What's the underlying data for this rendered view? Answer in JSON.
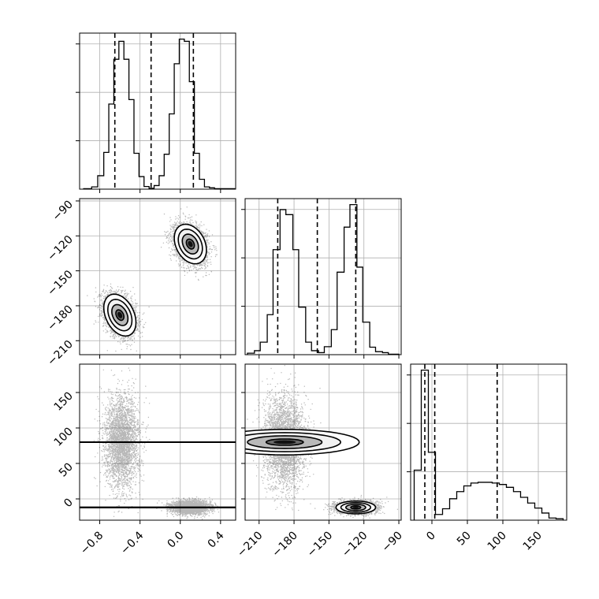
{
  "chart_data": {
    "type": "corner",
    "parameters": [
      {
        "range": [
          -1.0,
          0.55
        ],
        "ticks": [
          -0.8,
          -0.4,
          0.0,
          0.4
        ],
        "tick_labels": [
          "−0.8",
          "−0.4",
          "0.0",
          "0.4"
        ],
        "quantiles": [
          -0.65,
          -0.29,
          0.13
        ]
      },
      {
        "range": [
          -222,
          -88
        ],
        "ticks": [
          -210,
          -180,
          -150,
          -120,
          -90
        ],
        "tick_labels": [
          "−210",
          "−180",
          "−150",
          "−120",
          "−90"
        ],
        "quantiles": [
          -194,
          -160,
          -127
        ]
      },
      {
        "range": [
          -30,
          190
        ],
        "ticks": [
          0,
          50,
          100,
          150
        ],
        "tick_labels": [
          "0",
          "50",
          "100",
          "150"
        ],
        "quantiles": [
          -10,
          4,
          92
        ]
      }
    ],
    "histograms": [
      {
        "bins": [
          -0.96,
          -0.88,
          -0.82,
          -0.76,
          -0.71,
          -0.66,
          -0.61,
          -0.56,
          -0.51,
          -0.46,
          -0.41,
          -0.36,
          -0.31,
          -0.26,
          -0.21,
          -0.16,
          -0.11,
          -0.06,
          -0.01,
          0.04,
          0.09,
          0.14,
          0.19,
          0.24,
          0.29,
          0.34,
          0.39,
          0.54
        ],
        "counts": [
          1,
          5,
          30,
          82,
          190,
          290,
          330,
          290,
          200,
          80,
          28,
          6,
          2,
          8,
          30,
          78,
          168,
          280,
          335,
          330,
          240,
          80,
          22,
          5,
          3,
          1,
          1
        ]
      },
      {
        "bins": [
          -220,
          -214,
          -209,
          -203,
          -198,
          -192,
          -187,
          -181,
          -176,
          -170,
          -165,
          -159,
          -154,
          -148,
          -143,
          -137,
          -132,
          -126,
          -121,
          -115,
          -110,
          -104,
          -99,
          -90
        ],
        "counts": [
          3,
          8,
          25,
          80,
          210,
          290,
          280,
          210,
          95,
          25,
          8,
          4,
          16,
          50,
          165,
          255,
          300,
          175,
          65,
          15,
          6,
          4,
          1
        ]
      },
      {
        "bins": [
          -25,
          -15,
          -5,
          5,
          15,
          25,
          35,
          45,
          55,
          65,
          75,
          85,
          95,
          105,
          115,
          125,
          135,
          145,
          155,
          165,
          175,
          185
        ],
        "counts": [
          70,
          210,
          95,
          8,
          16,
          30,
          40,
          48,
          52,
          53,
          53,
          52,
          50,
          46,
          40,
          32,
          24,
          17,
          10,
          3,
          2
        ]
      }
    ],
    "scatter_clusters": {
      "1-0": [
        {
          "mean": [
            -0.6,
            -188
          ],
          "sd": [
            0.08,
            9
          ],
          "corr": -0.35,
          "n": 3200
        },
        {
          "mean": [
            0.1,
            -127
          ],
          "sd": [
            0.08,
            8.5
          ],
          "corr": -0.3,
          "n": 3200
        }
      ],
      "2-0": [
        {
          "mean": [
            -0.58,
            80
          ],
          "sd": [
            0.085,
            32
          ],
          "corr": 0.0,
          "n": 3200
        },
        {
          "mean": [
            0.1,
            -12
          ],
          "sd": [
            0.09,
            4.5
          ],
          "corr": 0.0,
          "n": 3200
        }
      ],
      "2-1": [
        {
          "mean": [
            -188,
            80
          ],
          "sd": [
            9,
            32
          ],
          "corr": 0.0,
          "n": 3200
        },
        {
          "mean": [
            -127,
            -12
          ],
          "sd": [
            8.5,
            4.5
          ],
          "corr": 0.0,
          "n": 3200
        }
      ]
    },
    "contour_levels": [
      0.5,
      1.0,
      1.5,
      2.0
    ],
    "grid": true,
    "xlabels_rotation": 45,
    "ylabels_rotation": 45
  }
}
